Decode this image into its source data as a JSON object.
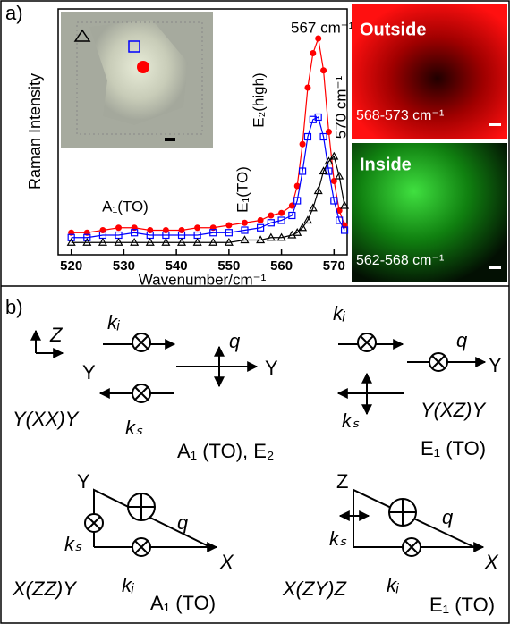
{
  "panel_labels": [
    "a)",
    "b)"
  ],
  "chart_data": {
    "type": "line",
    "xlabel": "Wavenumber/cm⁻¹",
    "ylabel": "Raman Intensity",
    "x": [
      520,
      523,
      526,
      529,
      532,
      535,
      538,
      541,
      544,
      547,
      550,
      553,
      556,
      558,
      560,
      562,
      563,
      564,
      565,
      566,
      567,
      568,
      569,
      570,
      571,
      572
    ],
    "series": [
      {
        "color": "#ff0000",
        "marker": "filled-circle",
        "values": [
          9,
          9,
          10,
          11,
          11,
          10,
          10,
          10,
          11,
          11,
          12,
          13,
          14,
          16,
          17,
          20,
          28,
          45,
          68,
          82,
          88,
          75,
          50,
          30,
          18,
          12
        ]
      },
      {
        "color": "#0000ff",
        "marker": "open-square",
        "values": [
          7,
          7,
          8,
          8,
          9,
          8,
          8,
          8,
          8,
          9,
          9,
          10,
          11,
          13,
          14,
          16,
          22,
          34,
          48,
          55,
          56,
          48,
          34,
          22,
          14,
          10
        ]
      },
      {
        "color": "#000000",
        "marker": "open-triangle",
        "values": [
          5,
          5,
          5,
          5,
          5,
          5,
          5,
          5,
          5,
          5,
          5,
          6,
          6,
          7,
          7,
          8,
          9,
          11,
          14,
          19,
          26,
          34,
          38,
          40,
          32,
          20
        ]
      }
    ],
    "xlim": [
      517.5,
      572.5
    ],
    "ylim": [
      0,
      100
    ],
    "xticks": [
      520,
      530,
      540,
      550,
      560,
      570
    ],
    "annotations": [
      "567 cm⁻¹",
      "570 cm⁻¹",
      "E₂(high)",
      "E₁(TO)",
      "A₁(TO)"
    ]
  },
  "maps": [
    {
      "title": "Outside",
      "range": "568-573 cm⁻¹"
    },
    {
      "title": "Inside",
      "range": "562-568 cm⁻¹"
    }
  ],
  "diagram": {
    "labels": [
      "Z",
      "Y",
      "kᵢ",
      "q",
      "Y",
      "Y(XX)Y",
      "kₛ",
      "A₁ (TO), E₂",
      "kᵢ",
      "q",
      "Y",
      "Y(XZ)Y",
      "kₛ",
      "E₁ (TO)",
      "Y",
      "q",
      "kₛ",
      "X",
      "X(ZZ)Y",
      "kᵢ",
      "A₁ (TO)",
      "Z",
      "q",
      "kₛ",
      "X",
      "X(ZY)Z",
      "kᵢ",
      "E₁ (TO)"
    ]
  }
}
